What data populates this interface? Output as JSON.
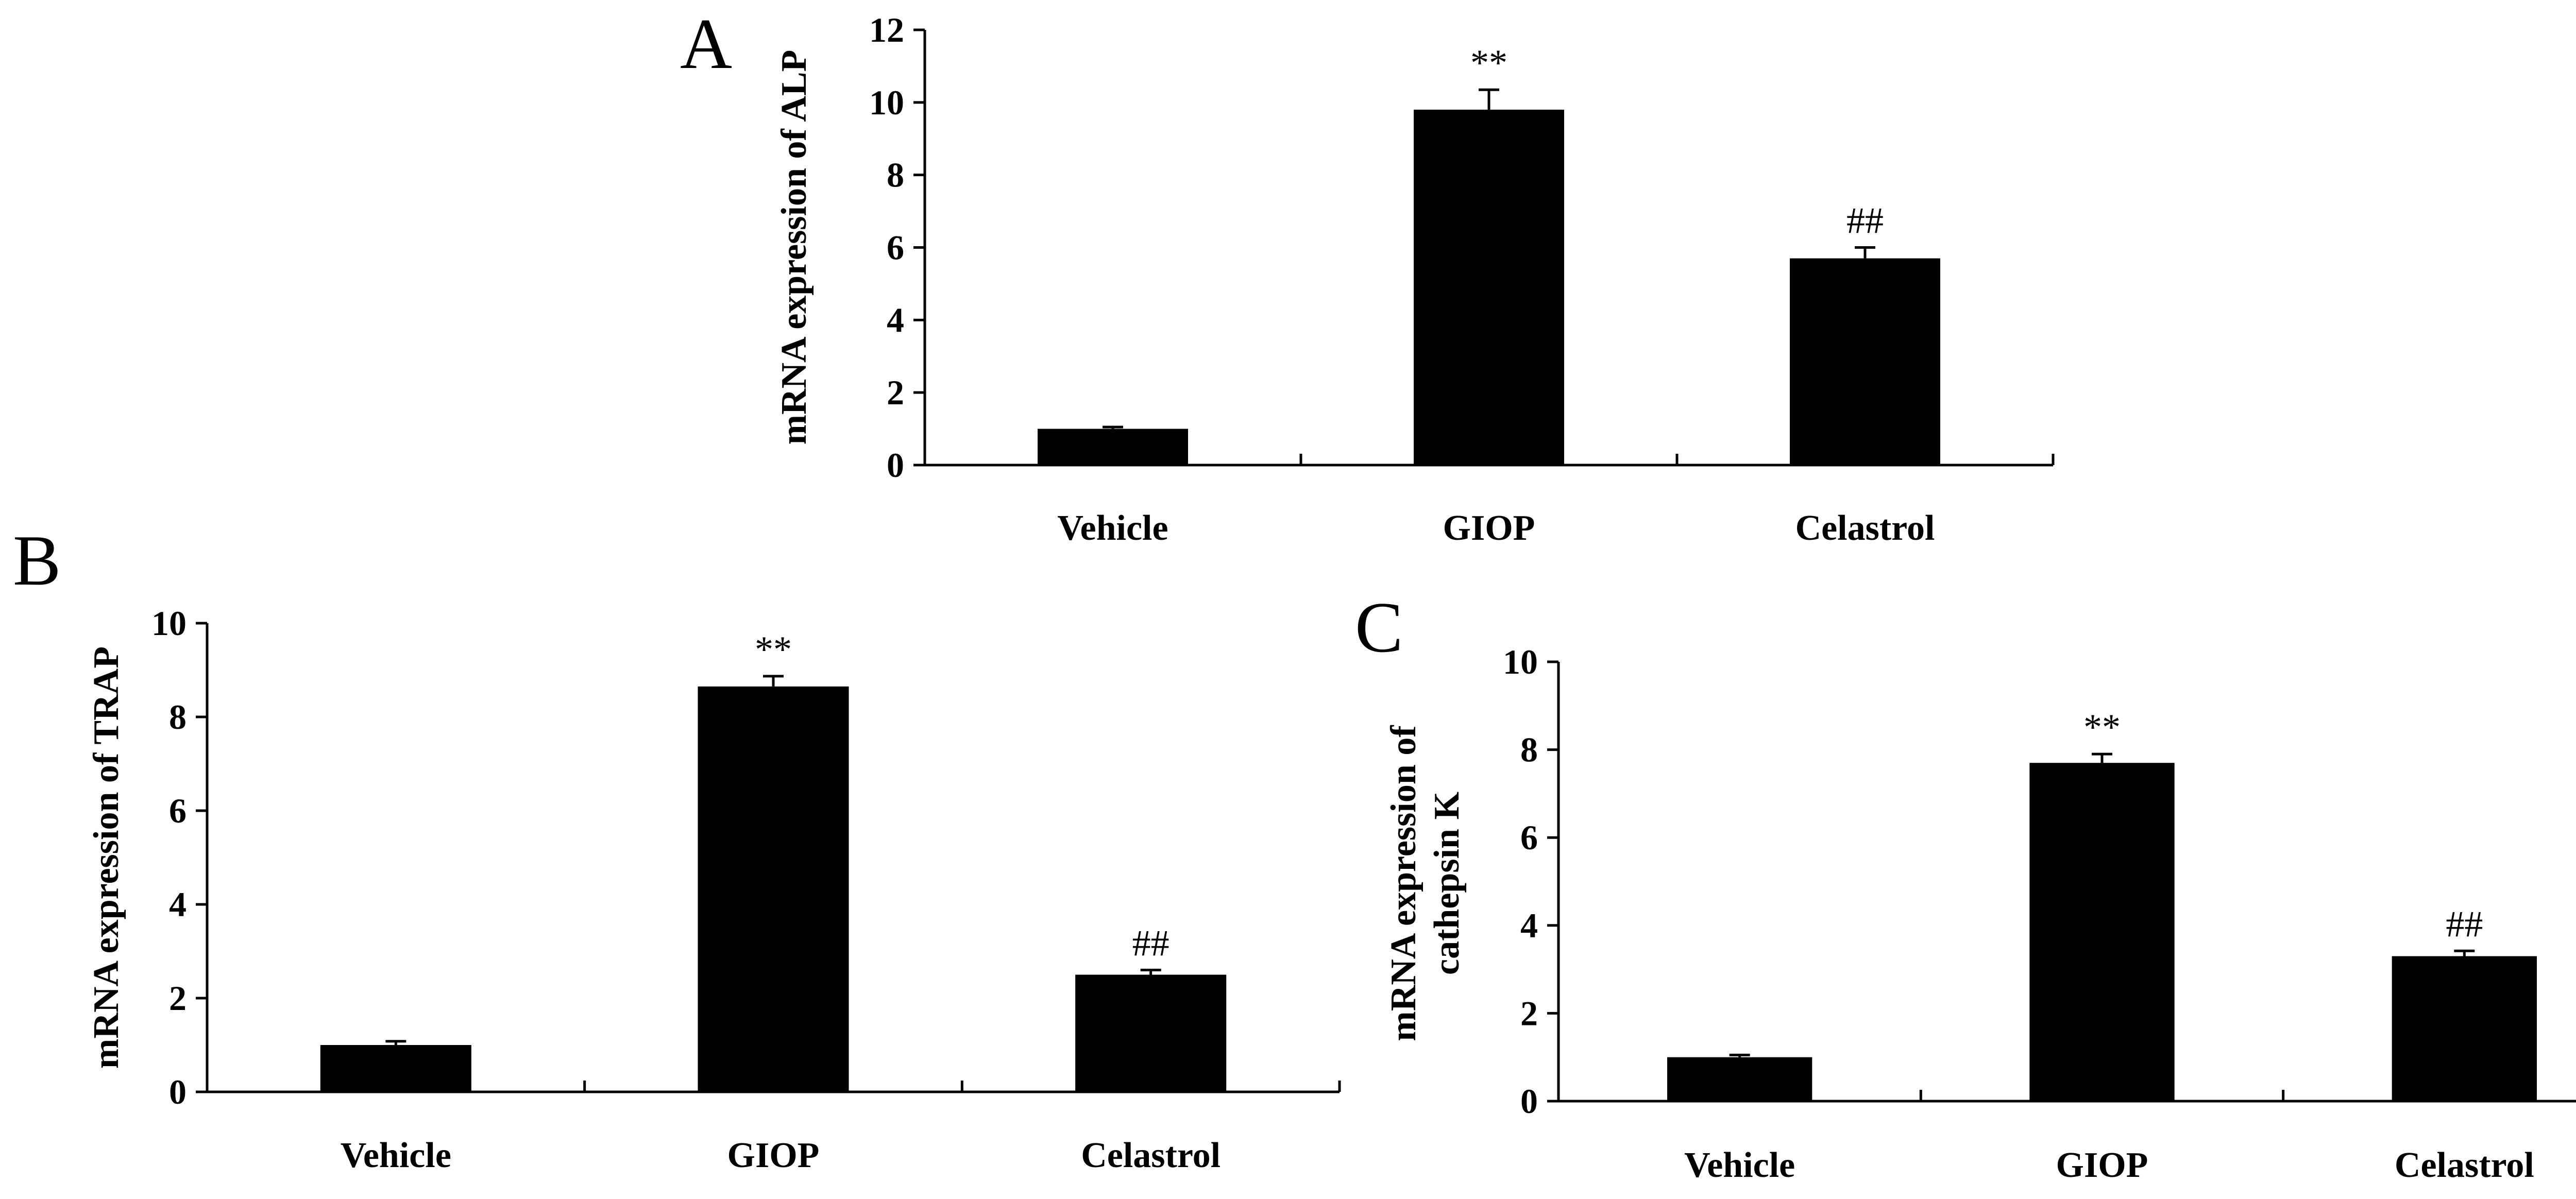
{
  "chart_data": [
    {
      "panel": "A",
      "type": "bar",
      "categories": [
        "Vehicle",
        "GIOP",
        "Celastrol"
      ],
      "values": [
        1.0,
        9.8,
        5.7
      ],
      "errors": [
        0.05,
        0.55,
        0.3
      ],
      "annotations": [
        "",
        "**",
        "##"
      ],
      "ylabel": "mRNA expression of ALP",
      "ylabel_lines": [
        "mRNA expression of ALP"
      ],
      "ylim": [
        0,
        12
      ],
      "yticks": [
        0,
        2,
        4,
        6,
        8,
        10,
        12
      ],
      "ytick_labels": [
        "0",
        "2",
        "4",
        "6",
        "8",
        "10",
        "12"
      ]
    },
    {
      "panel": "B",
      "type": "bar",
      "categories": [
        "Vehicle",
        "GIOP",
        "Celastrol"
      ],
      "values": [
        1.0,
        8.65,
        2.5
      ],
      "errors": [
        0.08,
        0.22,
        0.1
      ],
      "annotations": [
        "",
        "**",
        "##"
      ],
      "ylabel": "mRNA expression of TRAP",
      "ylabel_lines": [
        "mRNA expression of TRAP"
      ],
      "ylim": [
        0,
        10
      ],
      "yticks": [
        0,
        2,
        4,
        6,
        8,
        10
      ],
      "ytick_labels": [
        "0",
        "2",
        "4",
        "6",
        "8",
        "10"
      ]
    },
    {
      "panel": "C",
      "type": "bar",
      "categories": [
        "Vehicle",
        "GIOP",
        "Celastrol"
      ],
      "values": [
        1.0,
        7.7,
        3.3
      ],
      "errors": [
        0.05,
        0.2,
        0.12
      ],
      "annotations": [
        "",
        "**",
        "##"
      ],
      "ylabel": "mRNA expression of cathepsin K",
      "ylabel_lines": [
        "mRNA expression of",
        "cathepsin K"
      ],
      "ylim": [
        0,
        10
      ],
      "yticks": [
        0,
        2,
        4,
        6,
        8,
        10
      ],
      "ytick_labels": [
        "0",
        "2",
        "4",
        "6",
        "8",
        "10"
      ]
    }
  ]
}
